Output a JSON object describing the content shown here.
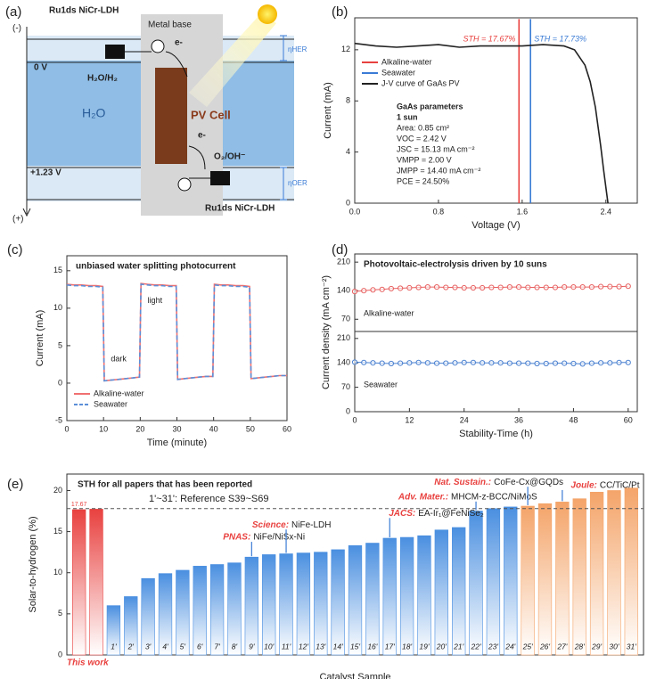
{
  "diagram": {
    "panel_label": "(a)",
    "minus": "(-)",
    "plus": "(+)",
    "top_catalyst": "Ru1ds NiCr-LDH",
    "metal_base": "Metal base",
    "electron_top": "e-",
    "zero_v": "0 V",
    "her_couple": "H₂O/H₂",
    "water": "H₂O",
    "pv_cell": "PV Cell",
    "electron_bottom": "e-",
    "oer_couple": "O₂/OH⁻",
    "oer_v": "+1.23 V",
    "eta_her": "ηHER",
    "eta_oer": "ηOER",
    "bottom_catalyst": "Ru1ds NiCr-LDH"
  },
  "chart_data": [
    {
      "type": "line",
      "panel_label": "(b)",
      "xlabel": "Voltage (V)",
      "ylabel": "Current (mA)",
      "xlim": [
        0,
        2.7
      ],
      "xticks": [
        {
          "value": 0,
          "label": "0.0"
        },
        0.8,
        1.6,
        2.4
      ],
      "ylim": [
        0,
        14.5
      ],
      "yticks": [
        0,
        4,
        8,
        12
      ],
      "legend": "upper left",
      "series": [
        {
          "name": "Alkaline-water",
          "color": "#e8413f",
          "x": [
            1.57,
            1.57
          ],
          "values": [
            0,
            14.4
          ]
        },
        {
          "name": "Seawater",
          "color": "#3a7bd5",
          "x": [
            1.68,
            1.68
          ],
          "values": [
            0,
            14.4
          ]
        },
        {
          "name": "J-V curve of GaAs PV",
          "color": "#222222",
          "x": [
            0,
            0.2,
            0.4,
            0.6,
            0.8,
            1.0,
            1.2,
            1.4,
            1.6,
            1.8,
            2.0,
            2.1,
            2.2,
            2.25,
            2.3,
            2.35,
            2.38,
            2.42
          ],
          "values": [
            12.5,
            12.3,
            12.2,
            12.3,
            12.4,
            12.2,
            12.3,
            12.3,
            12.3,
            12.4,
            12.3,
            12.0,
            10.8,
            9.5,
            7.5,
            4.5,
            2.5,
            0
          ]
        }
      ],
      "annotations": [
        "STH = 17.67%",
        "STH = 17.73%"
      ],
      "parameters": [
        "GaAs parameters",
        "1 sun",
        "Area: 0.85 cm²",
        "VOC = 2.42 V",
        "JSC = 15.13 mA cm⁻²",
        "VMPP = 2.00 V",
        "JMPP = 14.40 mA cm⁻²",
        "PCE = 24.50%"
      ]
    },
    {
      "type": "line",
      "panel_label": "(c)",
      "title": "unbiased water splitting photocurrent",
      "xlabel": "Time (minute)",
      "ylabel": "Current (mA)",
      "xlim": [
        0,
        60
      ],
      "xticks": [
        0,
        10,
        20,
        30,
        40,
        50,
        60
      ],
      "ylim": [
        -5,
        17
      ],
      "yticks": [
        -5,
        0,
        5,
        10,
        15
      ],
      "legend": "lower left",
      "series": [
        {
          "name": "Alkaline-water",
          "color": "#f07070",
          "dash": false,
          "x": [
            0,
            2,
            4,
            6,
            8,
            9.8,
            10.2,
            12,
            14,
            16,
            18,
            19.8,
            20.2,
            22,
            24,
            26,
            28,
            29.8,
            30.2,
            32,
            34,
            36,
            38,
            39.8,
            40.2,
            42,
            44,
            46,
            48,
            49.8,
            50.2,
            52,
            54,
            56,
            58,
            60
          ],
          "values": [
            13.2,
            13.1,
            13.1,
            13.0,
            13.0,
            12.9,
            0.3,
            0.4,
            0.5,
            0.6,
            0.7,
            0.8,
            13.3,
            13.2,
            13.1,
            13.1,
            13.0,
            13.0,
            0.5,
            0.6,
            0.7,
            0.8,
            0.9,
            0.9,
            13.2,
            13.1,
            13.1,
            13.0,
            13.0,
            12.9,
            0.6,
            0.7,
            0.8,
            0.9,
            1.0,
            1.0
          ]
        },
        {
          "name": "Seawater",
          "color": "#5b8fd8",
          "dash": true,
          "x": [
            0,
            2,
            4,
            6,
            8,
            9.8,
            10.2,
            12,
            14,
            16,
            18,
            19.8,
            20.2,
            22,
            24,
            26,
            28,
            29.8,
            30.2,
            32,
            34,
            36,
            38,
            39.8,
            40.2,
            42,
            44,
            46,
            48,
            49.8,
            50.2,
            52,
            54,
            56,
            58,
            60
          ],
          "values": [
            13.1,
            13.0,
            13.0,
            12.9,
            12.9,
            12.8,
            0.3,
            0.4,
            0.5,
            0.6,
            0.7,
            0.8,
            13.2,
            13.1,
            13.0,
            13.0,
            12.9,
            12.9,
            0.5,
            0.6,
            0.7,
            0.8,
            0.9,
            0.9,
            13.1,
            13.0,
            13.0,
            12.9,
            12.9,
            12.8,
            0.6,
            0.7,
            0.8,
            0.9,
            1.0,
            1.0
          ]
        }
      ],
      "annotations": [
        "light",
        "dark"
      ]
    },
    {
      "type": "line",
      "panel_label": "(d)",
      "title": "Photovoltaic-electrolysis driven by 10 suns",
      "ylabel": "Current density (mA cm⁻²)",
      "markers": true,
      "xlim": [
        0,
        62
      ],
      "ylim": [
        40,
        230
      ],
      "yticks": [
        70,
        140,
        210
      ],
      "series": [
        {
          "name": "Alkaline-water",
          "color": "#e86060",
          "x": [
            0,
            2,
            4,
            6,
            8,
            10,
            12,
            14,
            16,
            18,
            20,
            22,
            24,
            26,
            28,
            30,
            32,
            34,
            36,
            38,
            40,
            42,
            44,
            46,
            48,
            50,
            52,
            54,
            56,
            58,
            60
          ],
          "values": [
            138,
            140,
            142,
            143,
            145,
            146,
            147,
            148,
            149,
            149,
            148,
            148,
            147,
            147,
            147,
            148,
            148,
            149,
            149,
            148,
            148,
            148,
            148,
            149,
            149,
            149,
            149,
            150,
            150,
            150,
            151
          ]
        }
      ]
    },
    {
      "type": "line",
      "xlabel": "Stability-Time (h)",
      "markers": true,
      "xlim": [
        0,
        62
      ],
      "xticks": [
        0,
        12,
        24,
        36,
        48,
        60
      ],
      "ylim": [
        0,
        230
      ],
      "yticks": [
        0,
        70,
        140,
        210
      ],
      "series": [
        {
          "name": "Seawater",
          "color": "#4a80d0",
          "x": [
            0,
            2,
            4,
            6,
            8,
            10,
            12,
            14,
            16,
            18,
            20,
            22,
            24,
            26,
            28,
            30,
            32,
            34,
            36,
            38,
            40,
            42,
            44,
            46,
            48,
            50,
            52,
            54,
            56,
            58,
            60
          ],
          "values": [
            142,
            141,
            140,
            139,
            138,
            139,
            140,
            141,
            140,
            139,
            139,
            140,
            141,
            141,
            140,
            140,
            140,
            139,
            139,
            139,
            138,
            138,
            139,
            139,
            138,
            137,
            139,
            140,
            140,
            141,
            141
          ]
        }
      ]
    },
    {
      "type": "bar",
      "panel_label": "(e)",
      "title": "STH for all papers that has been reported",
      "subtitle": "1'~31': Reference S39~S69",
      "xlabel": "Catalyst Sample",
      "ylabel": "Solar-to-hydrogen (%)",
      "this_work_label": "This work",
      "ylim": [
        0,
        22
      ],
      "yticks": [
        0,
        5,
        10,
        15,
        20
      ],
      "reference_line": 17.8,
      "categories": [
        null,
        null,
        "1'",
        "2'",
        "3'",
        "4'",
        "5'",
        "6'",
        "7'",
        "8'",
        "9'",
        "10'",
        "11'",
        "12'",
        "13'",
        "14'",
        "15'",
        "16'",
        "17'",
        "18'",
        "19'",
        "20'",
        "21'",
        "22'",
        "23'",
        "24'",
        "25'",
        "26'",
        "27'",
        "28'",
        "29'",
        "30'",
        "31'"
      ],
      "values": [
        17.67,
        17.73,
        6.0,
        7.1,
        9.3,
        9.9,
        10.3,
        10.8,
        11.0,
        11.2,
        11.9,
        12.2,
        12.3,
        12.4,
        12.5,
        12.8,
        13.3,
        13.6,
        14.2,
        14.3,
        14.5,
        15.2,
        15.5,
        17.5,
        17.8,
        18.0,
        18.1,
        18.4,
        18.6,
        19.0,
        19.8,
        20.0,
        20.3
      ],
      "value_labels": [
        "17.67",
        null,
        null,
        null,
        null,
        null,
        null,
        null,
        null,
        null,
        null,
        null,
        null,
        null,
        null,
        null,
        null,
        null,
        null,
        null,
        null,
        null,
        null,
        null,
        null,
        null,
        null,
        null,
        null,
        null,
        null,
        null,
        null
      ],
      "colors": [
        "#e8413f",
        "#e8413f",
        "#4a8fe0",
        "#4a8fe0",
        "#4a8fe0",
        "#4a8fe0",
        "#4a8fe0",
        "#4a8fe0",
        "#4a8fe0",
        "#4a8fe0",
        "#4a8fe0",
        "#4a8fe0",
        "#4a8fe0",
        "#4a8fe0",
        "#4a8fe0",
        "#4a8fe0",
        "#4a8fe0",
        "#4a8fe0",
        "#4a8fe0",
        "#4a8fe0",
        "#4a8fe0",
        "#4a8fe0",
        "#4a8fe0",
        "#4a8fe0",
        "#4a8fe0",
        "#4a8fe0",
        "#f4a469",
        "#f4a469",
        "#f4a469",
        "#f4a469",
        "#f4a469",
        "#f4a469",
        "#f4a469"
      ],
      "annotations": [
        {
          "journal": "PNAS:",
          "text": "NiFe/NiSx-Ni"
        },
        {
          "journal": "Science:",
          "text": "NiFe-LDH"
        },
        {
          "journal": "JACS:",
          "text": "EA-Ir₁@FeNiSe₂"
        },
        {
          "journal": "Adv. Mater.:",
          "text": "MHCM-z-BCC/NiMoS"
        },
        {
          "journal": "Nat. Sustain.:",
          "text": "CoFe-Cx@GQDs"
        },
        {
          "journal": "Joule:",
          "text": "CC/TiC/Pt"
        }
      ]
    }
  ]
}
